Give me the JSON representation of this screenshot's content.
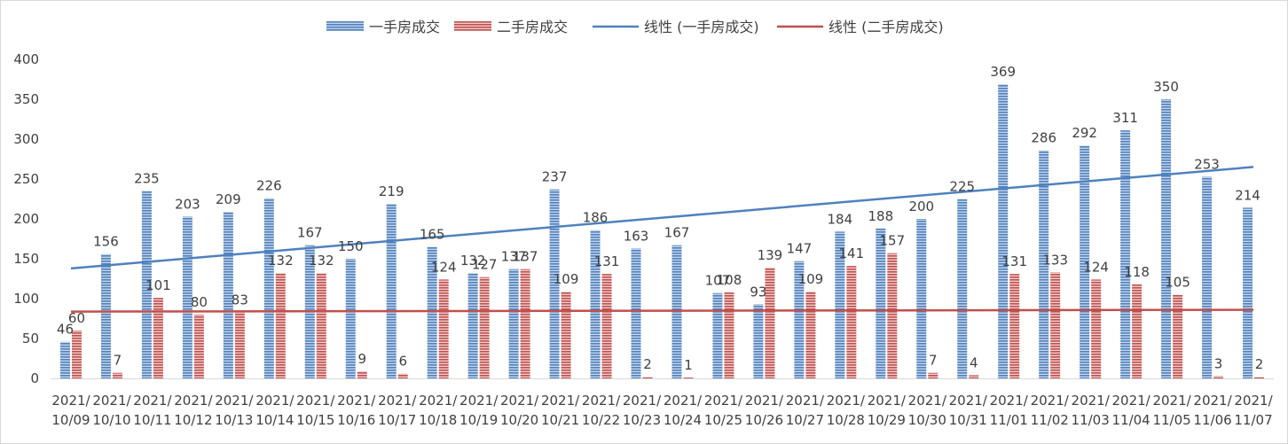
{
  "chart_data": {
    "type": "bar",
    "categories": [
      "2021/10/09",
      "2021/10/10",
      "2021/10/11",
      "2021/10/12",
      "2021/10/13",
      "2021/10/14",
      "2021/10/15",
      "2021/10/16",
      "2021/10/17",
      "2021/10/18",
      "2021/10/19",
      "2021/10/20",
      "2021/10/21",
      "2021/10/22",
      "2021/10/23",
      "2021/10/24",
      "2021/10/25",
      "2021/10/26",
      "2021/10/27",
      "2021/10/28",
      "2021/10/29",
      "2021/10/30",
      "2021/10/31",
      "2021/11/01",
      "2021/11/02",
      "2021/11/03",
      "2021/11/04",
      "2021/11/05",
      "2021/11/06",
      "2021/11/07"
    ],
    "series": [
      {
        "name": "一手房成交",
        "color": "#4f81bd",
        "values": [
          46,
          156,
          235,
          203,
          209,
          226,
          167,
          150,
          219,
          165,
          132,
          137,
          237,
          186,
          163,
          167,
          107,
          93,
          147,
          184,
          188,
          200,
          225,
          369,
          286,
          292,
          311,
          350,
          253,
          214
        ]
      },
      {
        "name": "二手房成交",
        "color": "#c0504d",
        "values": [
          60,
          7,
          101,
          80,
          83,
          132,
          132,
          9,
          6,
          124,
          127,
          137,
          109,
          131,
          2,
          1,
          108,
          139,
          109,
          141,
          157,
          7,
          4,
          131,
          133,
          124,
          118,
          105,
          3,
          2
        ]
      }
    ],
    "trendlines": [
      {
        "name": "线性 (一手房成交)",
        "color": "#4f81bd",
        "start": 137.9,
        "end": 265.1
      },
      {
        "name": "线性 (二手房成交)",
        "color": "#c0504d",
        "start": 83.8,
        "end": 86.0
      }
    ],
    "yaxis": {
      "min": 0,
      "max": 400,
      "step": 50,
      "ticks": [
        "0",
        "50",
        "100",
        "150",
        "200",
        "250",
        "300",
        "350",
        "400"
      ]
    },
    "legend_position": "top",
    "grid": false,
    "data_labels": true
  }
}
